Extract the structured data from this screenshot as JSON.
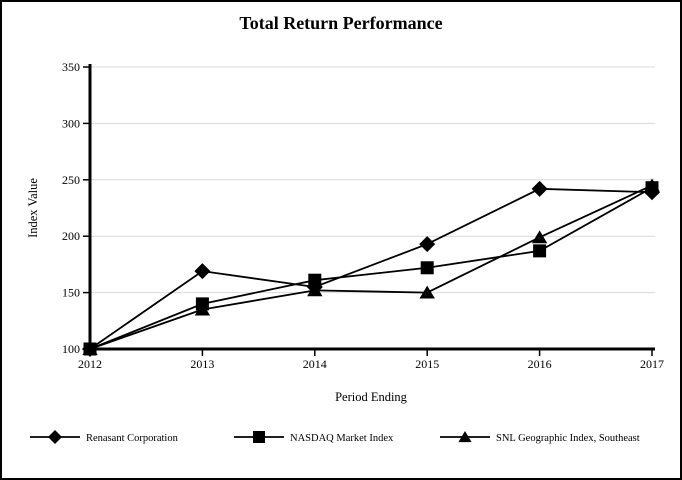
{
  "chart_data": {
    "type": "line",
    "title": "Total Return Performance",
    "xlabel": "Period Ending",
    "ylabel": "Index Value",
    "x": [
      2012,
      2013,
      2014,
      2015,
      2016,
      2017
    ],
    "ylim": [
      100,
      350
    ],
    "yticks": [
      100,
      150,
      200,
      250,
      300,
      350
    ],
    "grid": true,
    "legend_position": "bottom",
    "series": [
      {
        "name": "Renasant Corporation",
        "marker": "diamond",
        "values": [
          100,
          169,
          155,
          193,
          242,
          239
        ]
      },
      {
        "name": "NASDAQ Market Index",
        "marker": "square",
        "values": [
          100,
          140,
          161,
          172,
          187,
          243
        ]
      },
      {
        "name": "SNL Geographic Index, Southeast",
        "marker": "triangle",
        "values": [
          100,
          135,
          152,
          150,
          199,
          245
        ]
      }
    ],
    "colors": {
      "line": "#000000",
      "marker": "#000000",
      "grid": "#d9d9d9",
      "axis": "#000000",
      "background": "#ffffff",
      "border": "#000000"
    }
  }
}
